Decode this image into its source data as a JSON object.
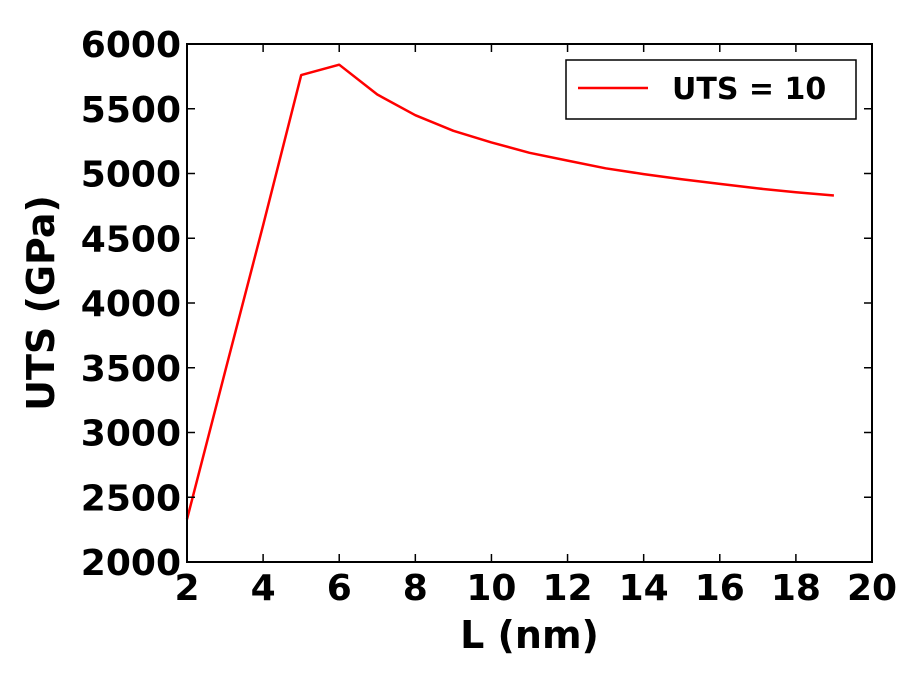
{
  "chart_data": {
    "type": "line",
    "xlabel": "L (nm)",
    "ylabel": "UTS (GPa)",
    "xlim": [
      2,
      20
    ],
    "ylim": [
      2000,
      6000
    ],
    "xticks": [
      "2",
      "4",
      "6",
      "8",
      "10",
      "12",
      "14",
      "16",
      "18",
      "20"
    ],
    "yticks": [
      "2000",
      "2500",
      "3000",
      "3500",
      "4000",
      "4500",
      "5000",
      "5500",
      "6000"
    ],
    "grid": false,
    "legend_position": "top-right",
    "series": [
      {
        "name": "UTS = 10",
        "color": "#ff0000",
        "x": [
          2,
          3,
          4,
          5,
          6,
          7,
          8,
          9,
          10,
          11,
          12,
          13,
          14,
          15,
          16,
          17,
          18,
          19
        ],
        "y": [
          2330,
          3470,
          4600,
          5760,
          5840,
          5610,
          5450,
          5330,
          5240,
          5160,
          5100,
          5040,
          4995,
          4955,
          4920,
          4885,
          4855,
          4830
        ]
      }
    ]
  }
}
